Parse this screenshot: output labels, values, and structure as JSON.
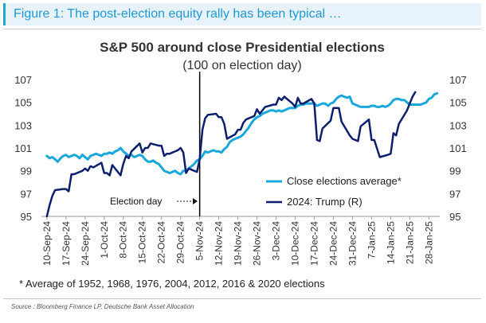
{
  "figure_label": "Figure 1: The post-election equity rally has been typical …",
  "footnote": "* Average of 1952, 1968, 1976, 2004, 2012, 2016 & 2020 elections",
  "source": "Source : Bloomberg Finance LP, Deutsche Bank Asset Allocation",
  "colors": {
    "average": "#1aa7dc",
    "trump": "#0b1f6e",
    "event_line": "#000000"
  },
  "chart_data": {
    "type": "line",
    "title": "S&P 500 around close Presidential elections",
    "subtitle": "(100 on election day)",
    "xlabel": "",
    "ylabel": "",
    "x_tick_labels": [
      "10-Sep-24",
      "17-Sep-24",
      "24-Sep-24",
      "1-Oct-24",
      "8-Oct-24",
      "15-Oct-24",
      "22-Oct-24",
      "29-Oct-24",
      "5-Nov-24",
      "12-Nov-24",
      "19-Nov-24",
      "26-Nov-24",
      "3-Dec-24",
      "10-Dec-24",
      "17-Dec-24",
      "24-Dec-24",
      "31-Dec-24",
      "7-Jan-25",
      "14-Jan-25",
      "21-Jan-25",
      "28-Jan-25"
    ],
    "ylim": [
      95,
      107
    ],
    "y_ticks": [
      95,
      97,
      99,
      101,
      103,
      105,
      107
    ],
    "y_axes": "left-and-right",
    "x_range": [
      "2024-09-08",
      "2025-02-01"
    ],
    "legend_position": "lower-right",
    "grid": false,
    "event": {
      "label": "Election day",
      "x": "2024-11-05"
    },
    "series": [
      {
        "name": "Close elections average*",
        "color": "#1aa7dc",
        "points": [
          [
            "2024-09-10",
            100.3
          ],
          [
            "2024-09-11",
            100.1
          ],
          [
            "2024-09-12",
            100.2
          ],
          [
            "2024-09-13",
            100.0
          ],
          [
            "2024-09-14",
            99.8
          ],
          [
            "2024-09-15",
            100.1
          ],
          [
            "2024-09-16",
            100.3
          ],
          [
            "2024-09-17",
            100.4
          ],
          [
            "2024-09-18",
            100.2
          ],
          [
            "2024-09-19",
            100.3
          ],
          [
            "2024-09-20",
            100.4
          ],
          [
            "2024-09-21",
            100.3
          ],
          [
            "2024-09-22",
            100.1
          ],
          [
            "2024-09-23",
            100.4
          ],
          [
            "2024-09-24",
            100.2
          ],
          [
            "2024-09-25",
            100.0
          ],
          [
            "2024-09-26",
            100.3
          ],
          [
            "2024-09-27",
            100.4
          ],
          [
            "2024-09-28",
            100.5
          ],
          [
            "2024-09-29",
            100.4
          ],
          [
            "2024-09-30",
            100.3
          ],
          [
            "2024-10-01",
            100.5
          ],
          [
            "2024-10-02",
            100.5
          ],
          [
            "2024-10-03",
            100.6
          ],
          [
            "2024-10-04",
            100.5
          ],
          [
            "2024-10-05",
            100.7
          ],
          [
            "2024-10-06",
            100.8
          ],
          [
            "2024-10-07",
            101.0
          ],
          [
            "2024-10-08",
            100.7
          ],
          [
            "2024-10-09",
            100.5
          ],
          [
            "2024-10-10",
            100.3
          ],
          [
            "2024-10-11",
            100.4
          ],
          [
            "2024-10-12",
            100.2
          ],
          [
            "2024-10-13",
            100.3
          ],
          [
            "2024-10-14",
            100.4
          ],
          [
            "2024-10-15",
            100.3
          ],
          [
            "2024-10-16",
            100.0
          ],
          [
            "2024-10-17",
            99.8
          ],
          [
            "2024-10-18",
            99.8
          ],
          [
            "2024-10-19",
            99.9
          ],
          [
            "2024-10-20",
            99.7
          ],
          [
            "2024-10-21",
            99.6
          ],
          [
            "2024-10-22",
            99.3
          ],
          [
            "2024-10-23",
            99.0
          ],
          [
            "2024-10-24",
            98.9
          ],
          [
            "2024-10-25",
            98.8
          ],
          [
            "2024-10-26",
            98.9
          ],
          [
            "2024-10-27",
            99.0
          ],
          [
            "2024-10-28",
            98.8
          ],
          [
            "2024-10-29",
            98.7
          ],
          [
            "2024-10-30",
            99.0
          ],
          [
            "2024-10-31",
            99.0
          ],
          [
            "2024-11-01",
            99.2
          ],
          [
            "2024-11-02",
            99.4
          ],
          [
            "2024-11-03",
            99.6
          ],
          [
            "2024-11-04",
            99.9
          ],
          [
            "2024-11-05",
            100.0
          ],
          [
            "2024-11-06",
            100.3
          ],
          [
            "2024-11-07",
            100.7
          ],
          [
            "2024-11-08",
            100.6
          ],
          [
            "2024-11-09",
            100.7
          ],
          [
            "2024-11-10",
            100.8
          ],
          [
            "2024-11-11",
            100.7
          ],
          [
            "2024-11-12",
            100.7
          ],
          [
            "2024-11-13",
            100.6
          ],
          [
            "2024-11-14",
            100.9
          ],
          [
            "2024-11-15",
            101.1
          ],
          [
            "2024-11-16",
            101.5
          ],
          [
            "2024-11-17",
            101.7
          ],
          [
            "2024-11-18",
            101.8
          ],
          [
            "2024-11-19",
            101.9
          ],
          [
            "2024-11-20",
            102.0
          ],
          [
            "2024-11-21",
            102.2
          ],
          [
            "2024-11-22",
            102.5
          ],
          [
            "2024-11-23",
            102.8
          ],
          [
            "2024-11-24",
            103.2
          ],
          [
            "2024-11-25",
            103.5
          ],
          [
            "2024-11-26",
            103.7
          ],
          [
            "2024-11-27",
            103.8
          ],
          [
            "2024-11-28",
            104.0
          ],
          [
            "2024-11-29",
            104.1
          ],
          [
            "2024-11-30",
            104.2
          ],
          [
            "2024-12-01",
            104.3
          ],
          [
            "2024-12-02",
            104.3
          ],
          [
            "2024-12-03",
            104.2
          ],
          [
            "2024-12-04",
            104.3
          ],
          [
            "2024-12-05",
            104.2
          ],
          [
            "2024-12-06",
            104.3
          ],
          [
            "2024-12-07",
            104.4
          ],
          [
            "2024-12-08",
            104.5
          ],
          [
            "2024-12-09",
            104.5
          ],
          [
            "2024-12-10",
            104.5
          ],
          [
            "2024-12-11",
            104.7
          ],
          [
            "2024-12-12",
            104.8
          ],
          [
            "2024-12-13",
            104.8
          ],
          [
            "2024-12-14",
            104.9
          ],
          [
            "2024-12-15",
            104.9
          ],
          [
            "2024-12-16",
            104.9
          ],
          [
            "2024-12-17",
            104.9
          ],
          [
            "2024-12-18",
            104.7
          ],
          [
            "2024-12-19",
            104.8
          ],
          [
            "2024-12-20",
            104.9
          ],
          [
            "2024-12-21",
            104.9
          ],
          [
            "2024-12-22",
            104.7
          ],
          [
            "2024-12-23",
            104.9
          ],
          [
            "2024-12-24",
            105.0
          ],
          [
            "2024-12-25",
            105.3
          ],
          [
            "2024-12-26",
            105.5
          ],
          [
            "2024-12-27",
            105.6
          ],
          [
            "2024-12-28",
            105.5
          ],
          [
            "2024-12-29",
            105.4
          ],
          [
            "2024-12-30",
            105.5
          ],
          [
            "2024-12-31",
            104.9
          ],
          [
            "2025-01-01",
            104.8
          ],
          [
            "2025-01-02",
            104.7
          ],
          [
            "2025-01-03",
            104.6
          ],
          [
            "2025-01-04",
            104.6
          ],
          [
            "2025-01-05",
            104.6
          ],
          [
            "2025-01-06",
            104.6
          ],
          [
            "2025-01-07",
            104.7
          ],
          [
            "2025-01-08",
            104.7
          ],
          [
            "2025-01-09",
            104.6
          ],
          [
            "2025-01-10",
            104.6
          ],
          [
            "2025-01-11",
            104.7
          ],
          [
            "2025-01-12",
            104.6
          ],
          [
            "2025-01-13",
            104.7
          ],
          [
            "2025-01-14",
            104.9
          ],
          [
            "2025-01-15",
            105.2
          ],
          [
            "2025-01-16",
            105.3
          ],
          [
            "2025-01-17",
            105.3
          ],
          [
            "2025-01-18",
            105.2
          ],
          [
            "2025-01-19",
            105.2
          ],
          [
            "2025-01-20",
            105.0
          ],
          [
            "2025-01-21",
            104.8
          ],
          [
            "2025-01-22",
            104.8
          ],
          [
            "2025-01-23",
            104.8
          ],
          [
            "2025-01-24",
            104.8
          ],
          [
            "2025-01-25",
            104.8
          ],
          [
            "2025-01-26",
            104.9
          ],
          [
            "2025-01-27",
            105.0
          ],
          [
            "2025-01-28",
            105.3
          ],
          [
            "2025-01-29",
            105.4
          ],
          [
            "2025-01-30",
            105.7
          ],
          [
            "2025-01-31",
            105.8
          ]
        ]
      },
      {
        "name": "2024: Trump (R)",
        "color": "#0b1f6e",
        "points": [
          [
            "2024-09-10",
            95.0
          ],
          [
            "2024-09-11",
            96.0
          ],
          [
            "2024-09-12",
            96.8
          ],
          [
            "2024-09-13",
            97.3
          ],
          [
            "2024-09-16",
            97.4
          ],
          [
            "2024-09-17",
            97.4
          ],
          [
            "2024-09-18",
            97.2
          ],
          [
            "2024-09-19",
            98.7
          ],
          [
            "2024-09-20",
            98.7
          ],
          [
            "2024-09-23",
            99.0
          ],
          [
            "2024-09-24",
            99.2
          ],
          [
            "2024-09-25",
            99.0
          ],
          [
            "2024-09-26",
            99.4
          ],
          [
            "2024-09-27",
            99.3
          ],
          [
            "2024-09-30",
            99.7
          ],
          [
            "2024-10-01",
            98.8
          ],
          [
            "2024-10-02",
            98.8
          ],
          [
            "2024-10-03",
            98.6
          ],
          [
            "2024-10-04",
            99.5
          ],
          [
            "2024-10-07",
            98.6
          ],
          [
            "2024-10-08",
            99.6
          ],
          [
            "2024-10-09",
            100.3
          ],
          [
            "2024-10-10",
            100.1
          ],
          [
            "2024-10-11",
            100.7
          ],
          [
            "2024-10-14",
            101.4
          ],
          [
            "2024-10-15",
            100.6
          ],
          [
            "2024-10-16",
            101.0
          ],
          [
            "2024-10-17",
            101.0
          ],
          [
            "2024-10-18",
            101.4
          ],
          [
            "2024-10-21",
            101.2
          ],
          [
            "2024-10-22",
            101.2
          ],
          [
            "2024-10-23",
            100.3
          ],
          [
            "2024-10-24",
            100.5
          ],
          [
            "2024-10-25",
            100.5
          ],
          [
            "2024-10-28",
            100.8
          ],
          [
            "2024-10-29",
            101.0
          ],
          [
            "2024-10-30",
            100.6
          ],
          [
            "2024-10-31",
            98.8
          ],
          [
            "2024-11-01",
            99.2
          ],
          [
            "2024-11-04",
            98.9
          ],
          [
            "2024-11-05",
            100.0
          ],
          [
            "2024-11-06",
            102.6
          ],
          [
            "2024-11-07",
            103.6
          ],
          [
            "2024-11-08",
            103.9
          ],
          [
            "2024-11-11",
            104.0
          ],
          [
            "2024-11-12",
            103.7
          ],
          [
            "2024-11-13",
            103.7
          ],
          [
            "2024-11-14",
            103.1
          ],
          [
            "2024-11-15",
            101.8
          ],
          [
            "2024-11-18",
            102.2
          ],
          [
            "2024-11-19",
            102.6
          ],
          [
            "2024-11-20",
            102.6
          ],
          [
            "2024-11-21",
            103.2
          ],
          [
            "2024-11-22",
            103.5
          ],
          [
            "2024-11-25",
            103.8
          ],
          [
            "2024-11-26",
            104.4
          ],
          [
            "2024-11-27",
            104.0
          ],
          [
            "2024-11-29",
            104.6
          ],
          [
            "2024-12-02",
            104.8
          ],
          [
            "2024-12-03",
            104.8
          ],
          [
            "2024-12-04",
            105.4
          ],
          [
            "2024-12-05",
            105.2
          ],
          [
            "2024-12-06",
            105.5
          ],
          [
            "2024-12-09",
            104.9
          ],
          [
            "2024-12-10",
            104.6
          ],
          [
            "2024-12-11",
            105.4
          ],
          [
            "2024-12-12",
            104.9
          ],
          [
            "2024-12-13",
            104.9
          ],
          [
            "2024-12-16",
            105.3
          ],
          [
            "2024-12-17",
            104.9
          ],
          [
            "2024-12-18",
            101.7
          ],
          [
            "2024-12-19",
            101.6
          ],
          [
            "2024-12-20",
            102.7
          ],
          [
            "2024-12-23",
            103.4
          ],
          [
            "2024-12-24",
            104.5
          ],
          [
            "2024-12-26",
            104.5
          ],
          [
            "2024-12-27",
            103.3
          ],
          [
            "2024-12-30",
            102.1
          ],
          [
            "2024-12-31",
            101.8
          ],
          [
            "2025-01-02",
            101.6
          ],
          [
            "2025-01-03",
            102.9
          ],
          [
            "2025-01-06",
            103.5
          ],
          [
            "2025-01-07",
            101.7
          ],
          [
            "2025-01-08",
            101.7
          ],
          [
            "2025-01-10",
            100.2
          ],
          [
            "2025-01-13",
            100.4
          ],
          [
            "2025-01-14",
            100.5
          ],
          [
            "2025-01-15",
            102.3
          ],
          [
            "2025-01-16",
            102.1
          ],
          [
            "2025-01-17",
            103.1
          ],
          [
            "2025-01-20",
            104.3
          ],
          [
            "2025-01-21",
            104.9
          ],
          [
            "2025-01-22",
            105.5
          ],
          [
            "2025-01-23",
            105.9
          ]
        ]
      }
    ]
  }
}
